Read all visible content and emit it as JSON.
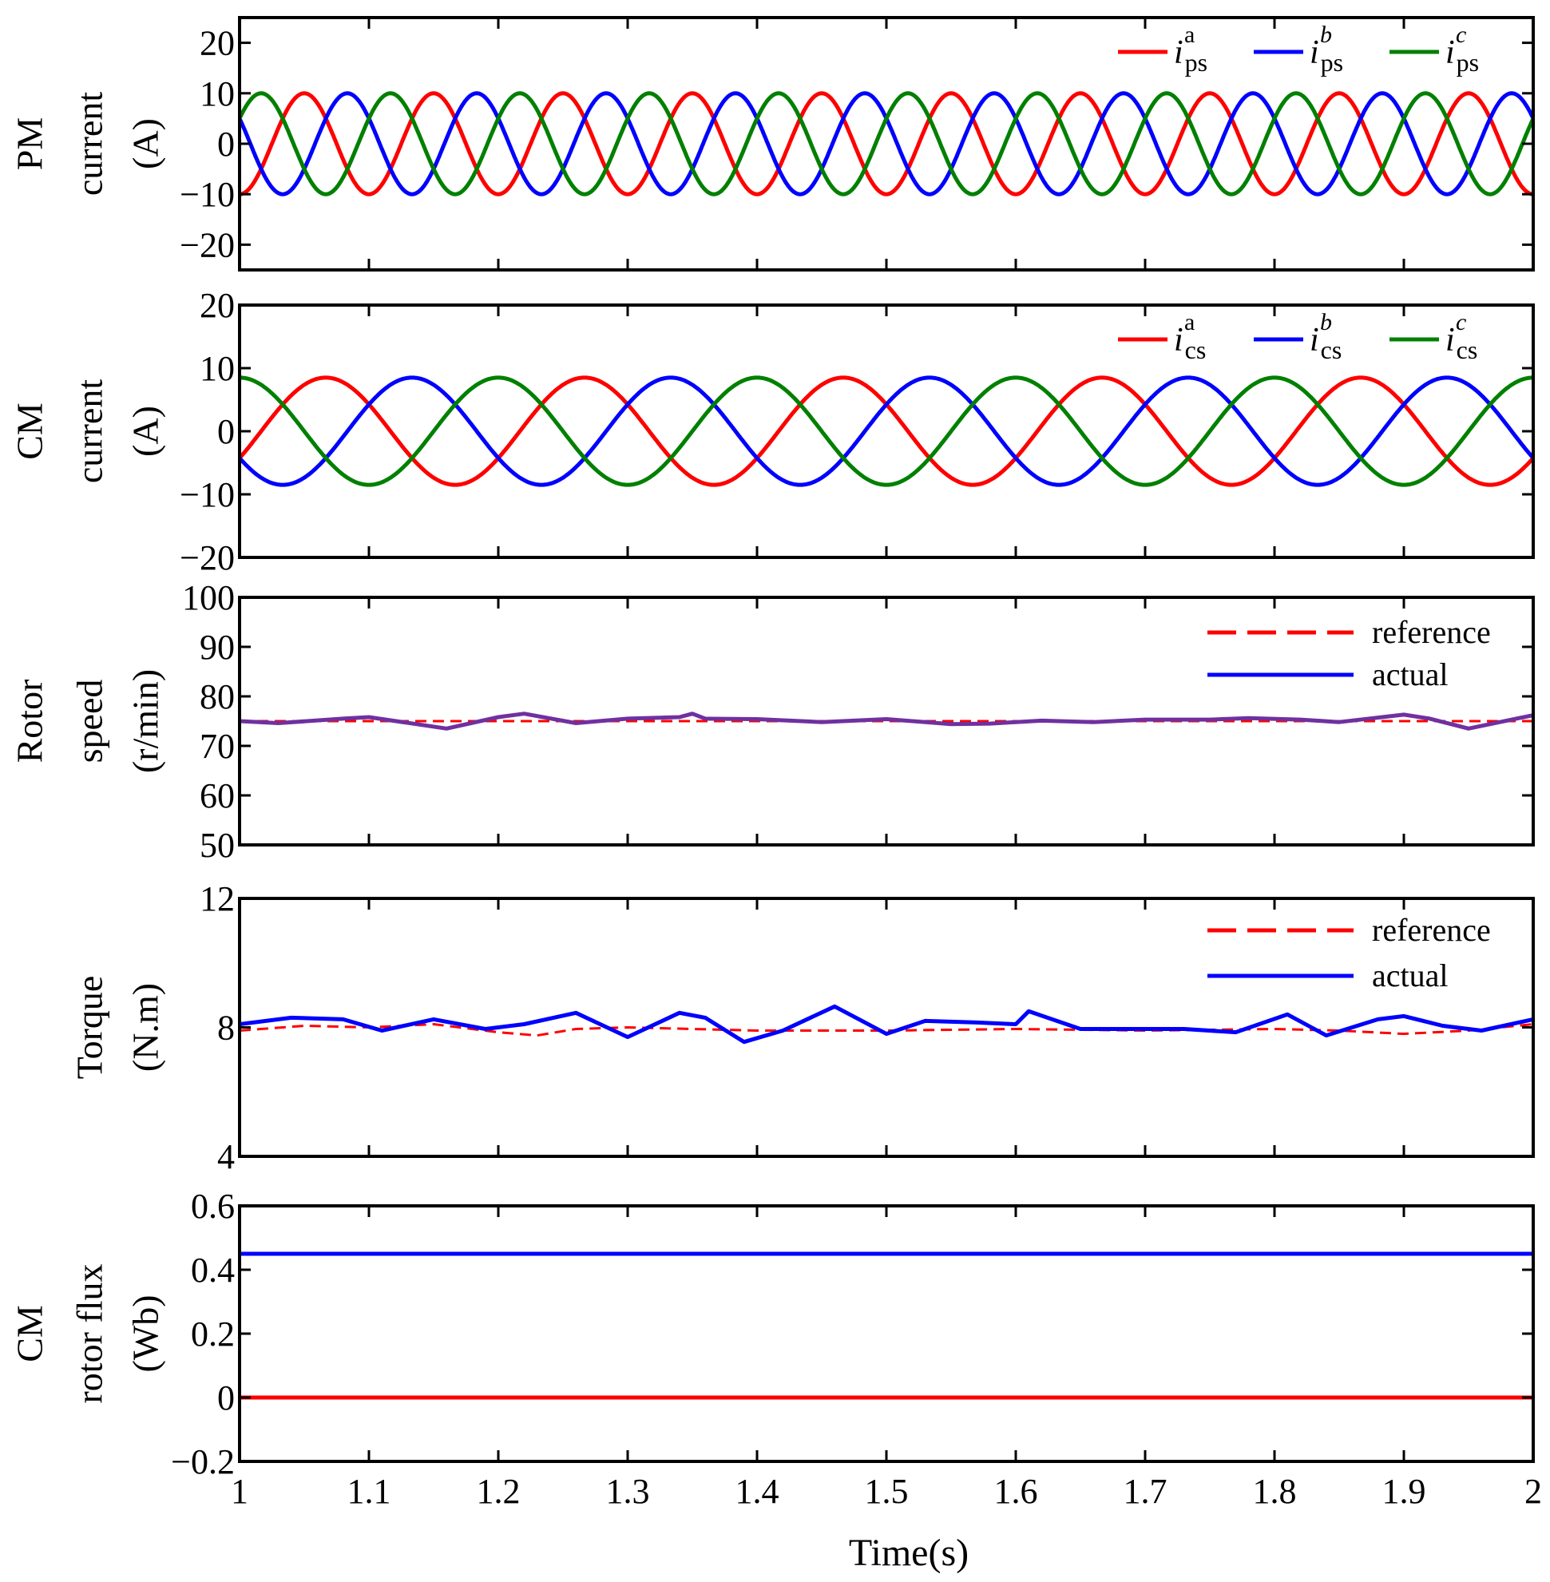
{
  "chart_data": [
    {
      "type": "line",
      "ylabel_lines": [
        "PM",
        "current",
        "(A)"
      ],
      "xlim": [
        1,
        2
      ],
      "ylim": [
        -25,
        25
      ],
      "yticks": [
        20,
        10,
        0,
        -10,
        -20
      ],
      "ytick_labels": [
        "20",
        "10",
        "0",
        "−10",
        "−20"
      ],
      "legend_position": "top-right",
      "series": [
        {
          "name": "i_ps^a",
          "var": "i",
          "sub": "ps",
          "sup": "a",
          "color": "#ff0000",
          "style": "solid",
          "waveform": {
            "amplitude": 10,
            "frequency_hz": 10,
            "phase_deg": -90
          }
        },
        {
          "name": "i_ps^b",
          "var": "i",
          "sub": "ps",
          "sup": "b",
          "color": "#0000ff",
          "style": "solid",
          "waveform": {
            "amplitude": 10,
            "frequency_hz": 10,
            "phase_deg": 150
          }
        },
        {
          "name": "i_ps^c",
          "var": "i",
          "sub": "ps",
          "sup": "c",
          "color": "#008000",
          "style": "solid",
          "waveform": {
            "amplitude": 10,
            "frequency_hz": 10,
            "phase_deg": 30
          }
        }
      ]
    },
    {
      "type": "line",
      "ylabel_lines": [
        "CM",
        "current",
        "(A)"
      ],
      "xlim": [
        1,
        2
      ],
      "ylim": [
        -20,
        20
      ],
      "yticks": [
        20,
        10,
        0,
        -10,
        -20
      ],
      "ytick_labels": [
        "20",
        "10",
        "0",
        "−10",
        "−20"
      ],
      "legend_position": "top-right",
      "series": [
        {
          "name": "i_cs^a",
          "var": "i",
          "sub": "cs",
          "sup": "a",
          "color": "#ff0000",
          "style": "solid",
          "waveform": {
            "amplitude": 8.5,
            "frequency_hz": 5,
            "phase_deg": -30
          }
        },
        {
          "name": "i_cs^b",
          "var": "i",
          "sub": "cs",
          "sup": "b",
          "color": "#0000ff",
          "style": "solid",
          "waveform": {
            "amplitude": 8.5,
            "frequency_hz": 5,
            "phase_deg": -150
          }
        },
        {
          "name": "i_cs^c",
          "var": "i",
          "sub": "cs",
          "sup": "c",
          "color": "#008000",
          "style": "solid",
          "waveform": {
            "amplitude": 8.5,
            "frequency_hz": 5,
            "phase_deg": 90
          }
        }
      ]
    },
    {
      "type": "line",
      "ylabel_lines": [
        "Rotor",
        "speed",
        "(r/min)"
      ],
      "xlim": [
        1,
        2
      ],
      "ylim": [
        50,
        100
      ],
      "yticks": [
        100,
        90,
        80,
        70,
        60,
        50
      ],
      "ytick_labels": [
        "100",
        "90",
        "80",
        "70",
        "60",
        "50"
      ],
      "legend_position": "top-right",
      "series": [
        {
          "name": "reference",
          "color": "#ff0000",
          "style": "dashed",
          "x": [
            1.0,
            2.0
          ],
          "y": [
            75,
            75
          ]
        },
        {
          "name": "actual",
          "color": "#0000ff",
          "style": "solid",
          "draw_color": "#7030a0",
          "x": [
            1.0,
            1.03,
            1.08,
            1.1,
            1.16,
            1.2,
            1.22,
            1.26,
            1.3,
            1.34,
            1.35,
            1.36,
            1.4,
            1.45,
            1.5,
            1.55,
            1.58,
            1.62,
            1.66,
            1.7,
            1.75,
            1.78,
            1.82,
            1.85,
            1.9,
            1.92,
            1.95,
            2.0
          ],
          "y": [
            75,
            74.6,
            75.5,
            75.8,
            73.5,
            75.8,
            76.5,
            74.6,
            75.5,
            75.8,
            76.5,
            75.5,
            75.4,
            74.8,
            75.4,
            74.4,
            74.5,
            75.1,
            74.8,
            75.3,
            75.3,
            75.6,
            75.3,
            74.8,
            76.3,
            75.5,
            73.5,
            76.2
          ]
        }
      ]
    },
    {
      "type": "line",
      "ylabel_lines": [
        "Torque",
        "(N.m)"
      ],
      "xlim": [
        1,
        2
      ],
      "ylim": [
        4,
        12
      ],
      "yticks": [
        12,
        8,
        4
      ],
      "ytick_labels": [
        "12",
        "8",
        "4"
      ],
      "legend_position": "top-right",
      "series": [
        {
          "name": "reference",
          "color": "#ff0000",
          "style": "dashed",
          "x": [
            1.0,
            1.05,
            1.1,
            1.15,
            1.2,
            1.23,
            1.26,
            1.3,
            1.35,
            1.4,
            1.5,
            1.6,
            1.7,
            1.8,
            1.85,
            1.9,
            1.95,
            2.0
          ],
          "y": [
            7.9,
            8.05,
            8.0,
            8.1,
            7.85,
            7.75,
            7.95,
            8.0,
            7.95,
            7.9,
            7.9,
            7.95,
            7.9,
            7.95,
            7.9,
            7.8,
            7.9,
            8.1
          ]
        },
        {
          "name": "actual",
          "color": "#0000ff",
          "style": "solid",
          "x": [
            1.0,
            1.04,
            1.08,
            1.11,
            1.15,
            1.19,
            1.22,
            1.26,
            1.3,
            1.34,
            1.36,
            1.39,
            1.42,
            1.46,
            1.5,
            1.53,
            1.57,
            1.6,
            1.61,
            1.65,
            1.7,
            1.73,
            1.77,
            1.81,
            1.84,
            1.88,
            1.9,
            1.93,
            1.96,
            2.0
          ],
          "y": [
            8.1,
            8.3,
            8.25,
            7.9,
            8.25,
            7.95,
            8.1,
            8.45,
            7.7,
            8.45,
            8.3,
            7.55,
            7.9,
            8.65,
            7.8,
            8.2,
            8.15,
            8.1,
            8.5,
            7.95,
            7.95,
            7.95,
            7.85,
            8.4,
            7.75,
            8.25,
            8.35,
            8.05,
            7.9,
            8.25
          ]
        }
      ]
    },
    {
      "type": "line",
      "ylabel_lines": [
        "CM",
        "rotor flux",
        "(Wb)"
      ],
      "xlim": [
        1,
        2
      ],
      "ylim": [
        -0.2,
        0.6
      ],
      "yticks": [
        0.6,
        0.4,
        0.2,
        0,
        -0.2
      ],
      "ytick_labels": [
        "0.6",
        "0.4",
        "0.2",
        "0",
        "−0.2"
      ],
      "series": [
        {
          "color": "#0000ff",
          "style": "solid",
          "x": [
            1.0,
            2.0
          ],
          "y": [
            0.45,
            0.45
          ]
        },
        {
          "color": "#ff0000",
          "style": "solid",
          "x": [
            1.0,
            2.0
          ],
          "y": [
            0,
            0
          ]
        }
      ]
    }
  ],
  "xaxis": {
    "label": "Time(s)",
    "ticks": [
      1,
      1.1,
      1.2,
      1.3,
      1.4,
      1.5,
      1.6,
      1.7,
      1.8,
      1.9,
      2
    ],
    "tick_labels": [
      "1",
      "1.1",
      "1.2",
      "1.3",
      "1.4",
      "1.5",
      "1.6",
      "1.7",
      "1.8",
      "1.9",
      "2"
    ]
  }
}
